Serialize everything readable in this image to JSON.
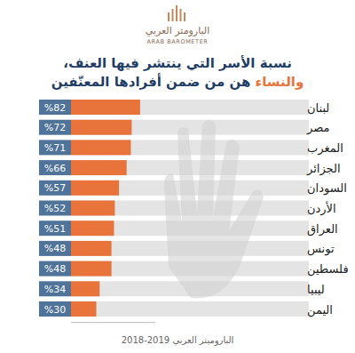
{
  "chart_data": {
    "type": "bar",
    "orientation": "horizontal",
    "title": "نسبة الأسر التي ينتشر فيها العنف،",
    "subtitle": "والنساء هن من ضمن أفرادها المعنّفين",
    "annotations": [
      "البارومتر العربي",
      "ARAB BAROMETER",
      "الباروميتر العربي 2019-2018"
    ],
    "categories": [
      "لبنان",
      "مصر",
      "المغرب",
      "الجزائر",
      "السودان",
      "الأردن",
      "العراق",
      "تونس",
      "فلسطين",
      "ليبيا",
      "اليمن"
    ],
    "values": [
      82,
      72,
      71,
      66,
      57,
      52,
      51,
      48,
      48,
      34,
      30
    ],
    "value_labels": [
      "%82",
      "%72",
      "%71",
      "%66",
      "%57",
      "%52",
      "%51",
      "%48",
      "%48",
      "%34",
      "%30"
    ],
    "color": "#e8743b",
    "xlim": [
      0,
      100
    ],
    "data_labels": true,
    "tick_labels": "y",
    "grid": false
  }
}
